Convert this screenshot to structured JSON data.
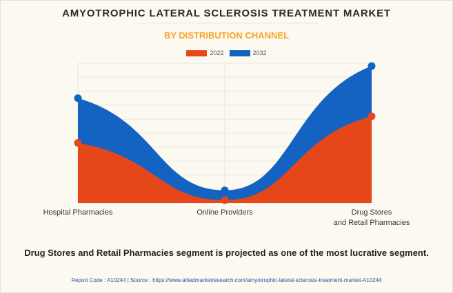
{
  "header": {
    "title": "AMYOTROPHIC LATERAL SCLEROSIS TREATMENT MARKET",
    "subtitle": "BY DISTRIBUTION CHANNEL"
  },
  "chart_data": {
    "type": "area",
    "categories": [
      "Hospital Pharmacies",
      "Online Providers",
      "Drug Stores and Retail Pharmacies"
    ],
    "category_lines": [
      [
        "Hospital Pharmacies"
      ],
      [
        "Online Providers"
      ],
      [
        "Drug Stores",
        "and Retail Pharmacies"
      ]
    ],
    "series": [
      {
        "name": "2022",
        "color": "#e5471b",
        "values": [
          43,
          2,
          62
        ]
      },
      {
        "name": "2032",
        "color": "#1462c2",
        "values": [
          75,
          9,
          98
        ]
      }
    ],
    "ylim": [
      0,
      100
    ],
    "grid": true,
    "legend": "top-center",
    "xlabel": "",
    "ylabel": ""
  },
  "footnote": "Drug Stores and Retail Pharmacies segment is projected as one of the most lucrative segment.",
  "source": "Report Code : A10244  |  Source : https://www.alliedmarketresearch.com/amyotrophic-lateral-sclerosis-treatment-market-A10244"
}
